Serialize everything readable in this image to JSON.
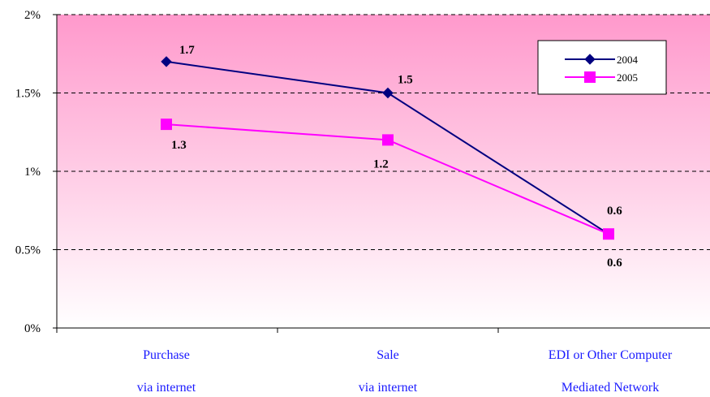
{
  "chart_data": {
    "type": "line",
    "categories": [
      [
        "Purchase",
        "via internet"
      ],
      [
        "Sale",
        "via internet"
      ],
      [
        "EDI or Other Computer",
        "Mediated Network"
      ]
    ],
    "series": [
      {
        "name": "2004",
        "values": [
          1.7,
          1.5,
          0.6
        ],
        "color": "#000080",
        "marker": "diamond",
        "labels": [
          "1.7",
          "1.5",
          "0.6"
        ]
      },
      {
        "name": "2005",
        "values": [
          1.3,
          1.2,
          0.6
        ],
        "color": "#ff00ff",
        "marker": "square",
        "labels": [
          "1.3",
          "1.2",
          "0.6"
        ]
      }
    ],
    "ylim": [
      0,
      2
    ],
    "yticks": [
      {
        "value": 0,
        "label": "0%"
      },
      {
        "value": 0.5,
        "label": "0.5%"
      },
      {
        "value": 1,
        "label": "1%"
      },
      {
        "value": 1.5,
        "label": "1.5%"
      },
      {
        "value": 2,
        "label": "2%"
      }
    ],
    "grid": "dashed horizontal",
    "legend_position": "top-right",
    "background_gradient": [
      "#ff99cc",
      "#ffffff"
    ],
    "category_label_color": "#1a1aff"
  }
}
